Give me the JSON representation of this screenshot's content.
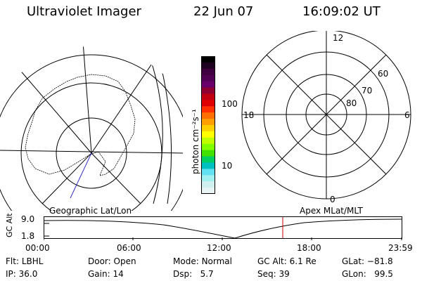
{
  "header": {
    "title": "Ultraviolet Imager",
    "date": "22 Jun 07",
    "time": "16:09:02 UT"
  },
  "left_panel": {
    "label": "Geographic Lat/Lon"
  },
  "colorbar": {
    "label_html": "photon cm⁻²s⁻¹",
    "ticks": [
      "100",
      "10"
    ],
    "colors": [
      "#000000",
      "#200020",
      "#400040",
      "#500050",
      "#6a006a",
      "#900030",
      "#c00010",
      "#e00000",
      "#ff3000",
      "#ff7000",
      "#ffa000",
      "#ffd000",
      "#ffff00",
      "#c0ff00",
      "#80ff00",
      "#40e000",
      "#00d060",
      "#00c0c0",
      "#60e0f0",
      "#a0f0f0",
      "#d0f0f0",
      "#e8f4f4"
    ]
  },
  "right_panel": {
    "label": "Apex MLat/MLT",
    "mlt_labels": {
      "top": "12",
      "bottom": "0",
      "left": "18",
      "right": "6"
    },
    "lat_labels": [
      "60",
      "70",
      "80"
    ]
  },
  "altitude_plot": {
    "ylabel": "GC Alt",
    "y_ticks": [
      "9.0",
      "1.8"
    ],
    "x_ticks": [
      "00:00",
      "06:00",
      "12:00",
      "18:00",
      "23:59"
    ],
    "marker_color": "#cc0000"
  },
  "status": {
    "flt_label": "Flt:",
    "flt_value": "LBHL",
    "ip_label": "IP:",
    "ip_value": "36.0",
    "door_label": "Door:",
    "door_value": "Open",
    "gain_label": "Gain:",
    "gain_value": "14",
    "mode_label": "Mode:",
    "mode_value": "Normal",
    "dsp_label": "Dsp:",
    "dsp_value": "5.7",
    "gcalt_label": "GC Alt:",
    "gcalt_value": "6.1 Re",
    "seq_label": "Seq:",
    "seq_value": "39",
    "glat_label": "GLat:",
    "glat_value": "−81.8",
    "glon_label": "GLon:",
    "glon_value": "99.5"
  }
}
